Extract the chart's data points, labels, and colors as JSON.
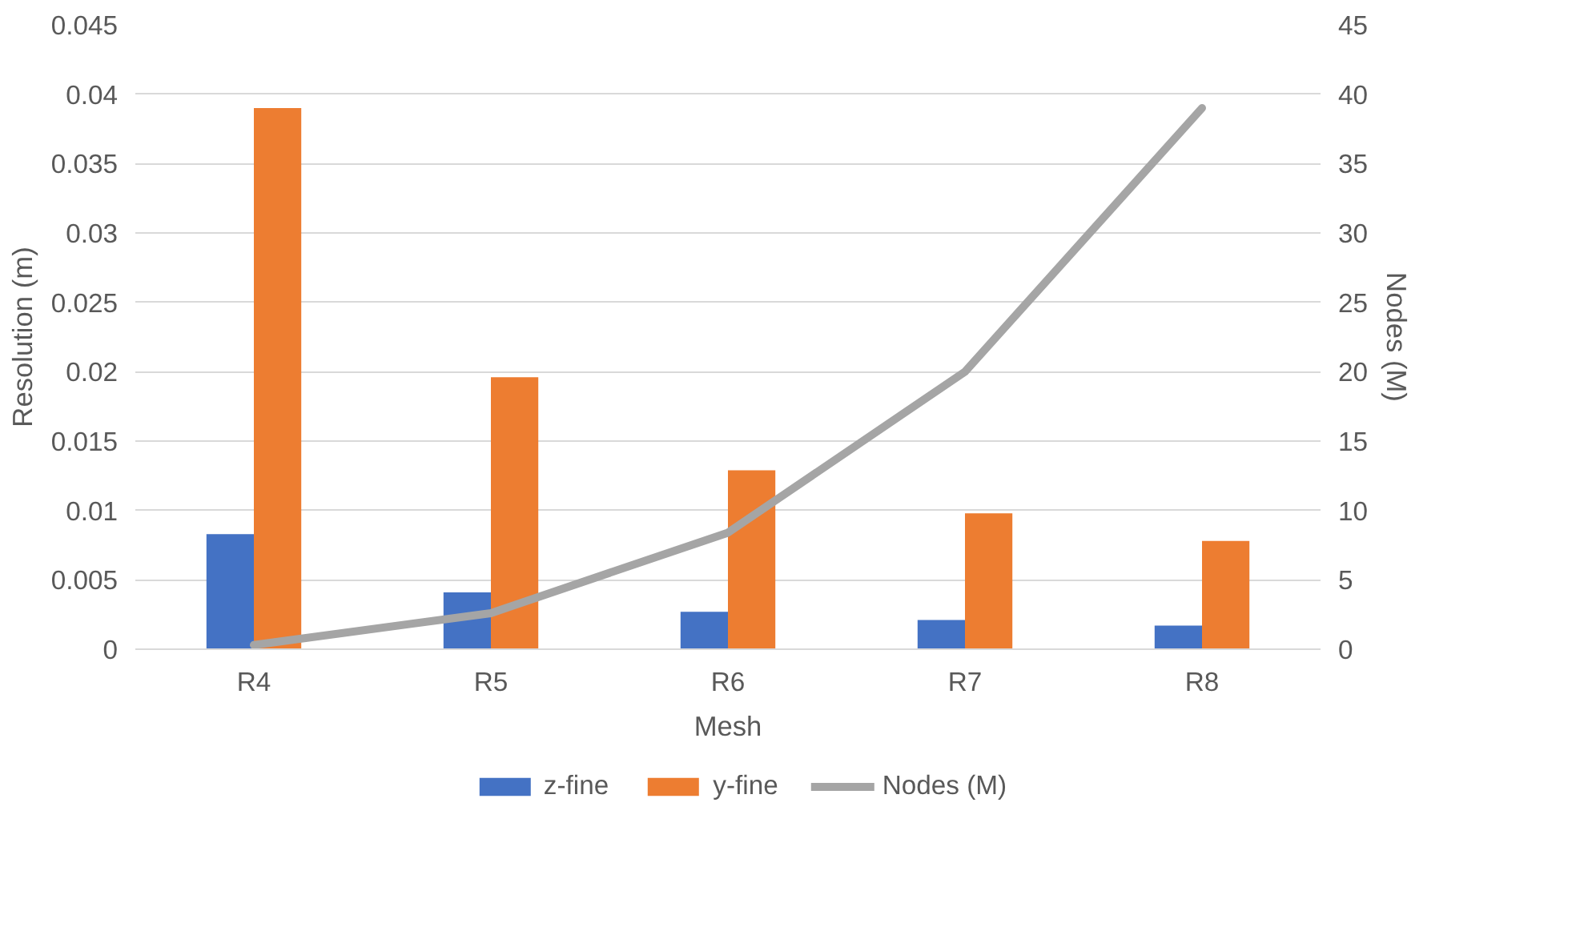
{
  "chart_data": {
    "type": "bar",
    "xlabel": "Mesh",
    "ylabel": "Resolution (m)",
    "y2label": "Nodes (M)",
    "categories": [
      "R4",
      "R5",
      "R6",
      "R7",
      "R8"
    ],
    "series": [
      {
        "name": "z-fine",
        "color": "#4472c4",
        "values": [
          0.0083,
          0.0041,
          0.0027,
          0.0021,
          0.0017
        ]
      },
      {
        "name": "y-fine",
        "color": "#ed7d31",
        "values": [
          0.039,
          0.0196,
          0.0129,
          0.0098,
          0.0078
        ]
      },
      {
        "name": "Nodes (M)",
        "type": "line",
        "axis": "y2",
        "color": "#a5a5a5",
        "values": [
          0.3,
          2.6,
          8.4,
          20,
          39
        ]
      }
    ],
    "ylim": [
      0,
      0.045
    ],
    "yticks": [
      0,
      0.005,
      0.01,
      0.015,
      0.02,
      0.025,
      0.03,
      0.035,
      0.04,
      0.045
    ],
    "y2lim": [
      0,
      45
    ],
    "y2ticks": [
      0,
      5,
      10,
      15,
      20,
      25,
      30,
      35,
      40,
      45
    ],
    "grid": "y",
    "legend": "bottom"
  }
}
